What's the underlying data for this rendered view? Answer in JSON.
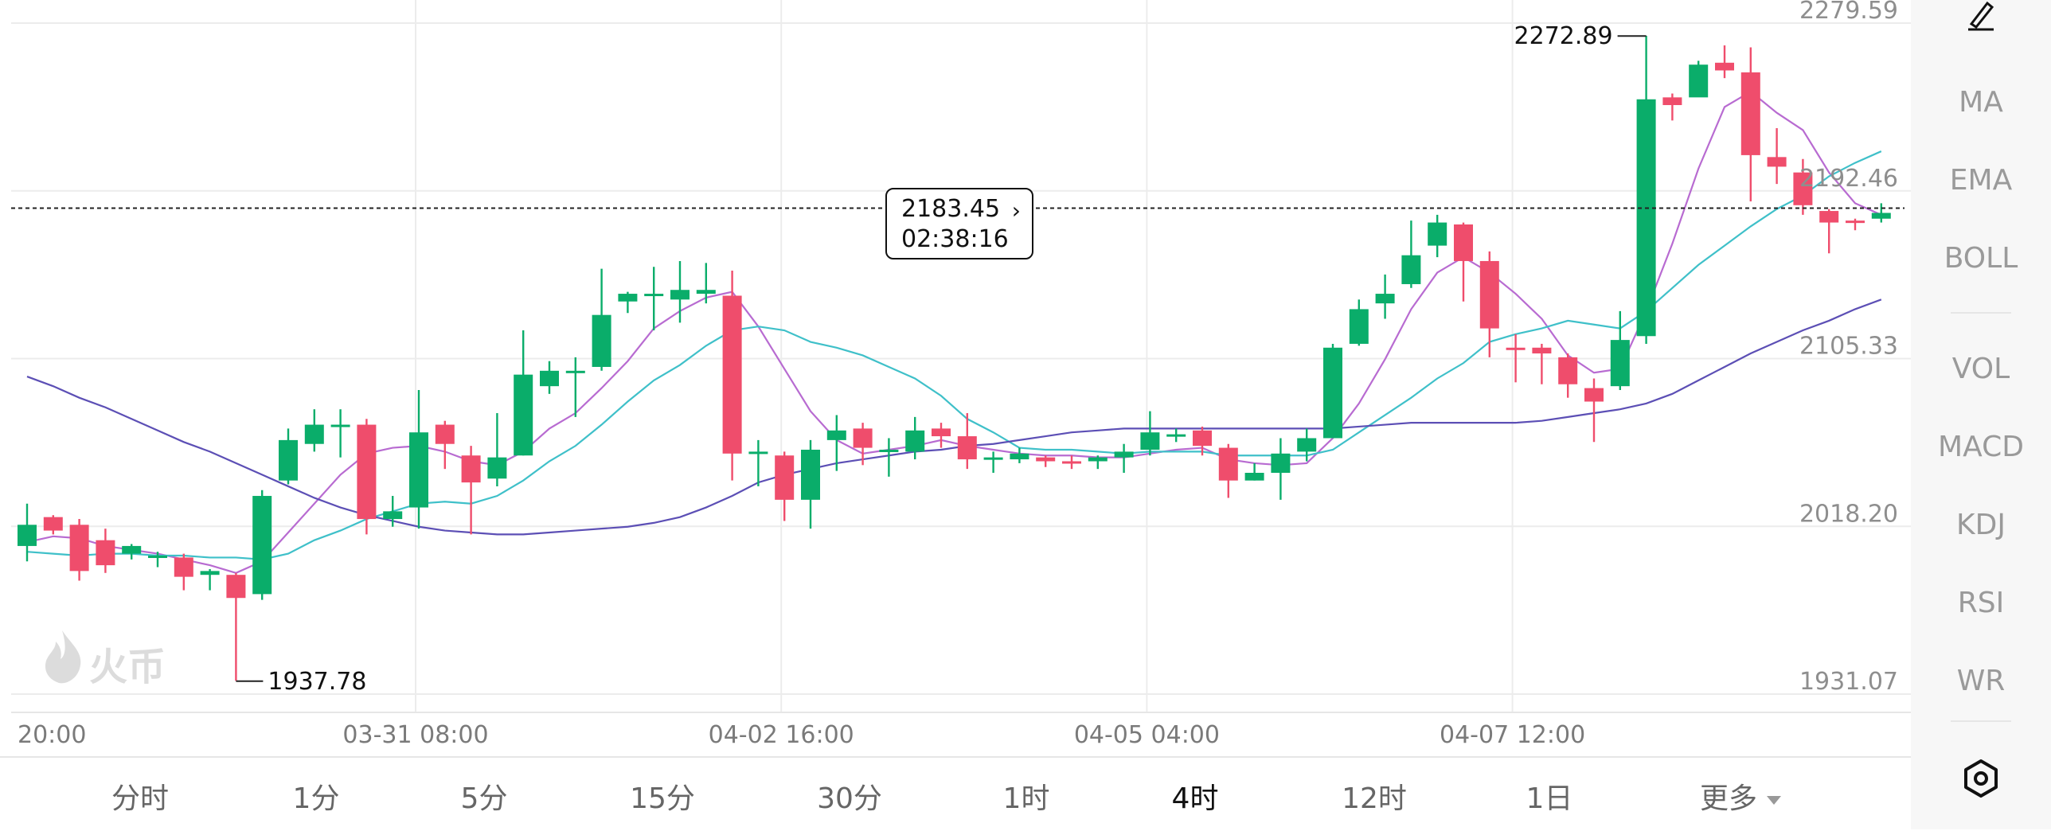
{
  "chart_data": {
    "type": "candlestick",
    "y_axis_labels": [
      "2279.59",
      "2192.46",
      "2105.33",
      "2018.20",
      "1931.07"
    ],
    "y_axis_values": [
      2279.59,
      2192.46,
      2105.33,
      2018.2,
      1931.07
    ],
    "x_axis_labels": [
      "20:00",
      "03-31 08:00",
      "04-02 16:00",
      "04-05 04:00",
      "04-07 12:00"
    ],
    "x_axis_label_index": [
      0,
      15,
      29,
      43,
      57
    ],
    "max_label": "2272.89",
    "min_label": "1937.78",
    "max_index": 62,
    "min_index": 8,
    "max_value": 2272.89,
    "min_value": 1937.78,
    "current_price_value": 2183.45,
    "up_color": "#0aad6a",
    "down_color": "#ef4d6c",
    "candles": [
      [
        2008,
        2019,
        2030,
        2000
      ],
      [
        2023,
        2016,
        2024,
        2014
      ],
      [
        2019,
        1995,
        2022,
        1990
      ],
      [
        2011,
        1998,
        2017,
        1994
      ],
      [
        2004,
        2008,
        2009,
        2001
      ],
      [
        2002,
        2003,
        2005,
        1997
      ],
      [
        2002,
        1992,
        2004,
        1985
      ],
      [
        1993,
        1995,
        1996,
        1985
      ],
      [
        1993,
        1981,
        1994,
        1938
      ],
      [
        1983,
        2034,
        2037,
        1980
      ],
      [
        2042,
        2063,
        2069,
        2040
      ],
      [
        2061,
        2071,
        2079,
        2057
      ],
      [
        2071,
        2071,
        2079,
        2054
      ],
      [
        2071,
        2022,
        2074,
        2014
      ],
      [
        2022,
        2026,
        2034,
        2018
      ],
      [
        2028,
        2067,
        2089,
        2017
      ],
      [
        2071,
        2061,
        2073,
        2048
      ],
      [
        2055,
        2041,
        2060,
        2014
      ],
      [
        2043,
        2054,
        2077,
        2039
      ],
      [
        2055,
        2097,
        2120,
        2055
      ],
      [
        2091,
        2099,
        2104,
        2087
      ],
      [
        2099,
        2099,
        2106,
        2075
      ],
      [
        2101,
        2128,
        2152,
        2099
      ],
      [
        2135,
        2139,
        2140,
        2129
      ],
      [
        2139,
        2139,
        2153,
        2120
      ],
      [
        2136,
        2141,
        2156,
        2124
      ],
      [
        2139,
        2141,
        2155,
        2134
      ],
      [
        2138,
        2056,
        2151,
        2042
      ],
      [
        2057,
        2057,
        2063,
        2039
      ],
      [
        2055,
        2032,
        2057,
        2021
      ],
      [
        2032,
        2058,
        2063,
        2017
      ],
      [
        2063,
        2068,
        2076,
        2047
      ],
      [
        2069,
        2059,
        2072,
        2050
      ],
      [
        2058,
        2058,
        2064,
        2044
      ],
      [
        2057,
        2068,
        2075,
        2053
      ],
      [
        2069,
        2065,
        2072,
        2059
      ],
      [
        2065,
        2053,
        2077,
        2048
      ],
      [
        2053,
        2054,
        2057,
        2046
      ],
      [
        2053,
        2056,
        2059,
        2051
      ],
      [
        2054,
        2052,
        2055,
        2049
      ],
      [
        2052,
        2051,
        2055,
        2048
      ],
      [
        2052,
        2054,
        2055,
        2048
      ],
      [
        2054,
        2057,
        2061,
        2046
      ],
      [
        2058,
        2067,
        2078,
        2055
      ],
      [
        2066,
        2066,
        2069,
        2062
      ],
      [
        2068,
        2060,
        2070,
        2055
      ],
      [
        2059,
        2042,
        2061,
        2033
      ],
      [
        2042,
        2046,
        2051,
        2042
      ],
      [
        2046,
        2056,
        2064,
        2032
      ],
      [
        2057,
        2064,
        2069,
        2052
      ],
      [
        2064,
        2111,
        2113,
        2064
      ],
      [
        2113,
        2131,
        2136,
        2112
      ],
      [
        2134,
        2139,
        2149,
        2126
      ],
      [
        2144,
        2159,
        2177,
        2142
      ],
      [
        2164,
        2176,
        2180,
        2158
      ],
      [
        2175,
        2156,
        2176,
        2135
      ],
      [
        2156,
        2121,
        2161,
        2106
      ],
      [
        2111,
        2110,
        2118,
        2093
      ],
      [
        2111,
        2108,
        2113,
        2092
      ],
      [
        2106,
        2092,
        2108,
        2085
      ],
      [
        2090,
        2083,
        2095,
        2062
      ],
      [
        2091,
        2115,
        2130,
        2089
      ],
      [
        2117,
        2240,
        2273,
        2113
      ],
      [
        2241,
        2237,
        2243,
        2229
      ],
      [
        2241,
        2258,
        2260,
        2255
      ],
      [
        2259,
        2255,
        2268,
        2251
      ],
      [
        2254,
        2211,
        2267,
        2187
      ],
      [
        2210,
        2205,
        2225,
        2196
      ],
      [
        2202,
        2185,
        2209,
        2180
      ],
      [
        2182,
        2176,
        2183,
        2160
      ],
      [
        2177,
        2176,
        2178,
        2172
      ],
      [
        2178,
        2181,
        2186,
        2176
      ]
    ],
    "ma_lines": [
      {
        "color": "#b86bd1",
        "values": [
          2010,
          2013,
          2012,
          2008,
          2006,
          2004,
          2001,
          1998,
          1994,
          2000,
          2015,
          2030,
          2045,
          2056,
          2059,
          2060,
          2057,
          2052,
          2050,
          2057,
          2069,
          2077,
          2090,
          2104,
          2121,
          2130,
          2137,
          2140,
          2122,
          2100,
          2078,
          2063,
          2056,
          2058,
          2060,
          2063,
          2060,
          2058,
          2056,
          2055,
          2055,
          2054,
          2054,
          2056,
          2058,
          2059,
          2053,
          2051,
          2050,
          2051,
          2064,
          2082,
          2105,
          2131,
          2150,
          2158,
          2150,
          2139,
          2126,
          2107,
          2098,
          2100,
          2130,
          2165,
          2204,
          2236,
          2244,
          2233,
          2224,
          2202,
          2186,
          2180
        ]
      },
      {
        "color": "#3fc0c9",
        "values": [
          2005,
          2004,
          2003,
          2004,
          2004,
          2003,
          2003,
          2002,
          2002,
          2001,
          2004,
          2011,
          2016,
          2022,
          2026,
          2030,
          2031,
          2030,
          2034,
          2042,
          2052,
          2060,
          2071,
          2083,
          2094,
          2102,
          2112,
          2120,
          2122,
          2120,
          2114,
          2111,
          2107,
          2101,
          2095,
          2086,
          2074,
          2067,
          2059,
          2058,
          2058,
          2057,
          2056,
          2057,
          2057,
          2057,
          2055,
          2055,
          2055,
          2055,
          2058,
          2067,
          2076,
          2085,
          2095,
          2103,
          2114,
          2118,
          2121,
          2125,
          2123,
          2121,
          2130,
          2142,
          2154,
          2164,
          2174,
          2183,
          2190,
          2200,
          2207,
          2213
        ]
      },
      {
        "color": "#5c4fb5",
        "values": [
          2096,
          2091,
          2085,
          2080,
          2074,
          2068,
          2062,
          2057,
          2051,
          2045,
          2039,
          2033,
          2028,
          2024,
          2021,
          2018,
          2016,
          2015,
          2014,
          2014,
          2015,
          2016,
          2017,
          2018,
          2020,
          2023,
          2028,
          2034,
          2041,
          2045,
          2048,
          2051,
          2053,
          2055,
          2057,
          2058,
          2060,
          2061,
          2063,
          2065,
          2067,
          2068,
          2069,
          2069,
          2069,
          2069,
          2069,
          2069,
          2069,
          2069,
          2069,
          2070,
          2071,
          2072,
          2072,
          2072,
          2072,
          2072,
          2073,
          2075,
          2077,
          2079,
          2082,
          2087,
          2094,
          2101,
          2108,
          2114,
          2120,
          2125,
          2131,
          2136
        ]
      }
    ]
  },
  "crosshair": {
    "price": "2183.45",
    "time": "02:38:16"
  },
  "watermark": {
    "text": "火币"
  },
  "sidebar": {
    "items": [
      {
        "label": "MA",
        "active": true
      },
      {
        "label": "EMA",
        "active": false
      },
      {
        "label": "BOLL",
        "active": false
      },
      {
        "label": "VOL",
        "active": true
      },
      {
        "label": "MACD",
        "active": false
      },
      {
        "label": "KDJ",
        "active": false
      },
      {
        "label": "RSI",
        "active": false
      },
      {
        "label": "WR",
        "active": false
      }
    ],
    "top_icon": "edit-pencil-icon",
    "bottom_icon": "settings-hexagon-icon"
  },
  "intervals": {
    "tabs": [
      "分时",
      "1分",
      "5分",
      "15分",
      "30分",
      "1时",
      "4时",
      "12时",
      "1日"
    ],
    "active_index": 6,
    "more_label": "更多"
  }
}
